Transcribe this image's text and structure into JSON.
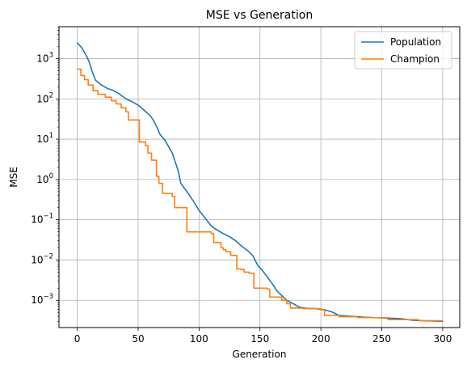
{
  "chart_data": {
    "type": "line",
    "title": "MSE vs Generation",
    "xlabel": "Generation",
    "ylabel": "MSE",
    "xlim": [
      -15,
      314
    ],
    "ylim": [
      0.00021,
      6200
    ],
    "yscale": "log",
    "grid": true,
    "legend_position": "top-right",
    "xticks": [
      0,
      50,
      100,
      150,
      200,
      250,
      300
    ],
    "yticks": [
      {
        "value": 0.001,
        "base": "10",
        "exp": "−3"
      },
      {
        "value": 0.01,
        "base": "10",
        "exp": "−2"
      },
      {
        "value": 0.1,
        "base": "10",
        "exp": "−1"
      },
      {
        "value": 1,
        "base": "10",
        "exp": "0"
      },
      {
        "value": 10,
        "base": "10",
        "exp": "1"
      },
      {
        "value": 100,
        "base": "10",
        "exp": "2"
      },
      {
        "value": 1000,
        "base": "10",
        "exp": "3"
      }
    ],
    "series": [
      {
        "name": "Population",
        "color": "#1f77b4",
        "step": false,
        "points": [
          [
            0,
            2500
          ],
          [
            4,
            1800
          ],
          [
            8,
            1100
          ],
          [
            10,
            800
          ],
          [
            12,
            500
          ],
          [
            15,
            290
          ],
          [
            20,
            220
          ],
          [
            25,
            180
          ],
          [
            30,
            160
          ],
          [
            35,
            130
          ],
          [
            40,
            100
          ],
          [
            45,
            85
          ],
          [
            50,
            70
          ],
          [
            55,
            52
          ],
          [
            60,
            38
          ],
          [
            63,
            28
          ],
          [
            66,
            18
          ],
          [
            68,
            13
          ],
          [
            72,
            9.5
          ],
          [
            75,
            6.5
          ],
          [
            78,
            4.5
          ],
          [
            80,
            3
          ],
          [
            83,
            1.6
          ],
          [
            85,
            0.8
          ],
          [
            88,
            0.6
          ],
          [
            90,
            0.5
          ],
          [
            95,
            0.3
          ],
          [
            100,
            0.17
          ],
          [
            105,
            0.11
          ],
          [
            110,
            0.07
          ],
          [
            115,
            0.055
          ],
          [
            120,
            0.045
          ],
          [
            125,
            0.038
          ],
          [
            130,
            0.03
          ],
          [
            135,
            0.022
          ],
          [
            140,
            0.017
          ],
          [
            144,
            0.013
          ],
          [
            148,
            0.0075
          ],
          [
            152,
            0.0055
          ],
          [
            156,
            0.0038
          ],
          [
            160,
            0.0026
          ],
          [
            164,
            0.0017
          ],
          [
            168,
            0.0013
          ],
          [
            172,
            0.001
          ],
          [
            178,
            0.0008
          ],
          [
            182,
            0.00068
          ],
          [
            188,
            0.00063
          ],
          [
            195,
            0.00062
          ],
          [
            200,
            0.0006
          ],
          [
            205,
            0.00056
          ],
          [
            210,
            0.0005
          ],
          [
            215,
            0.00042
          ],
          [
            225,
            0.0004
          ],
          [
            235,
            0.00038
          ],
          [
            245,
            0.00037
          ],
          [
            255,
            0.00036
          ],
          [
            265,
            0.00035
          ],
          [
            275,
            0.00032
          ],
          [
            285,
            0.00031
          ],
          [
            300,
            0.0003
          ]
        ]
      },
      {
        "name": "Champion",
        "color": "#ff7f0e",
        "step": true,
        "points": [
          [
            0,
            550
          ],
          [
            3,
            380
          ],
          [
            6,
            300
          ],
          [
            9,
            220
          ],
          [
            13,
            160
          ],
          [
            17,
            130
          ],
          [
            23,
            110
          ],
          [
            28,
            90
          ],
          [
            32,
            75
          ],
          [
            36,
            60
          ],
          [
            40,
            48
          ],
          [
            42,
            30
          ],
          [
            51,
            8.5
          ],
          [
            56,
            7
          ],
          [
            58,
            4.5
          ],
          [
            61,
            3
          ],
          [
            65,
            1.2
          ],
          [
            67,
            0.8
          ],
          [
            70,
            0.45
          ],
          [
            78,
            0.38
          ],
          [
            80,
            0.2
          ],
          [
            90,
            0.05
          ],
          [
            110,
            0.045
          ],
          [
            112,
            0.027
          ],
          [
            118,
            0.02
          ],
          [
            120,
            0.018
          ],
          [
            122,
            0.016
          ],
          [
            126,
            0.013
          ],
          [
            131,
            0.006
          ],
          [
            134,
            0.0058
          ],
          [
            137,
            0.005
          ],
          [
            141,
            0.0047
          ],
          [
            145,
            0.002
          ],
          [
            156,
            0.0019
          ],
          [
            158,
            0.0012
          ],
          [
            168,
            0.001
          ],
          [
            172,
            0.00082
          ],
          [
            175,
            0.00064
          ],
          [
            185,
            0.00062
          ],
          [
            200,
            0.00058
          ],
          [
            203,
            0.00042
          ],
          [
            215,
            0.00039
          ],
          [
            230,
            0.00037
          ],
          [
            255,
            0.00033
          ],
          [
            280,
            0.00031
          ],
          [
            300,
            0.0003
          ]
        ]
      }
    ]
  }
}
